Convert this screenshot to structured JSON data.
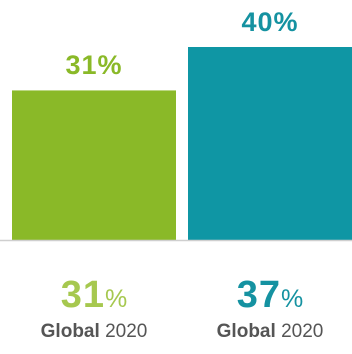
{
  "colors": {
    "series_1": "#8ab928",
    "series_2": "#0f96a4",
    "series_1_light": "#a6c84f",
    "series_2_dark": "#1592a1",
    "baseline": "#cfcfcf",
    "caption": "#555555"
  },
  "chart_data": {
    "type": "bar",
    "categories": [
      "",
      ""
    ],
    "values": [
      31,
      40
    ],
    "data_labels": [
      "31%",
      "40%"
    ],
    "ylim": [
      0,
      40
    ],
    "grid": false,
    "legend": "none"
  },
  "footer": [
    {
      "value": "31",
      "unit": "%",
      "label_bold": "Global",
      "label_year": "2020"
    },
    {
      "value": "37",
      "unit": "%",
      "label_bold": "Global",
      "label_year": "2020"
    }
  ]
}
